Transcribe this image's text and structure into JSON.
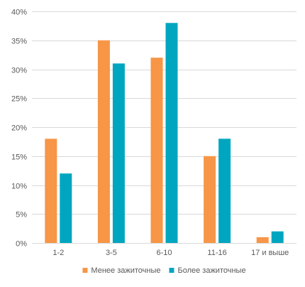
{
  "chart_data": {
    "type": "bar",
    "title": "",
    "xlabel": "",
    "ylabel": "",
    "categories": [
      "1-2",
      "3-5",
      "6-10",
      "11-16",
      "17 и выше"
    ],
    "series": [
      {
        "name": "Менее зажиточные",
        "color": "#F79646",
        "values": [
          18,
          35,
          32,
          15,
          1
        ]
      },
      {
        "name": "Более зажиточные",
        "color": "#00A6C0",
        "values": [
          12,
          31,
          38,
          18,
          2
        ]
      }
    ],
    "ylim": [
      0,
      40
    ],
    "yticks": [
      0,
      5,
      10,
      15,
      20,
      25,
      30,
      35,
      40
    ],
    "y_tick_format": "percent",
    "grid": true,
    "legend_position": "bottom"
  }
}
